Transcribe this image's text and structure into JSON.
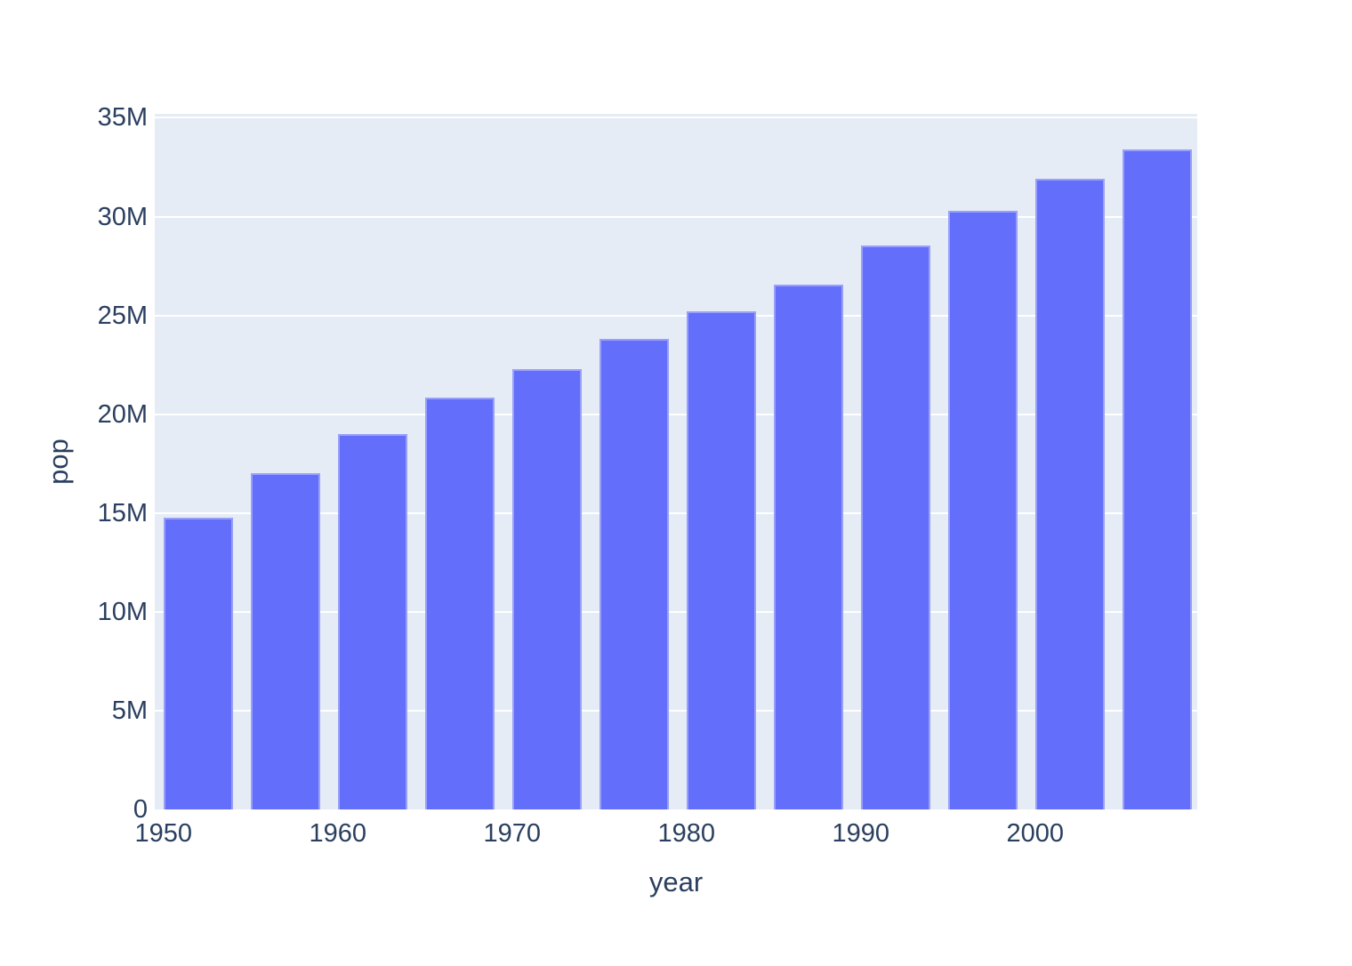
{
  "chart_data": {
    "type": "bar",
    "title": "",
    "xlabel": "year",
    "ylabel": "pop",
    "series_name": "pop",
    "x": [
      1952,
      1957,
      1962,
      1967,
      1972,
      1977,
      1982,
      1987,
      1992,
      1997,
      2002,
      2007
    ],
    "values": [
      14785584,
      17010154,
      18985849,
      20819767,
      22284500,
      23796400,
      25201900,
      26549700,
      28523502,
      30305843,
      31902268,
      33390141
    ],
    "x_range": [
      1949.5,
      2009.3
    ],
    "y_range": [
      0,
      35200000
    ],
    "bar_width_x": 4,
    "x_ticks": [
      {
        "value": 1950,
        "label": "1950"
      },
      {
        "value": 1960,
        "label": "1960"
      },
      {
        "value": 1970,
        "label": "1970"
      },
      {
        "value": 1980,
        "label": "1980"
      },
      {
        "value": 1990,
        "label": "1990"
      },
      {
        "value": 2000,
        "label": "2000"
      }
    ],
    "y_ticks": [
      {
        "value": 0,
        "label": "0"
      },
      {
        "value": 5000000,
        "label": "5M"
      },
      {
        "value": 10000000,
        "label": "10M"
      },
      {
        "value": 15000000,
        "label": "15M"
      },
      {
        "value": 20000000,
        "label": "20M"
      },
      {
        "value": 25000000,
        "label": "25M"
      },
      {
        "value": 30000000,
        "label": "30M"
      },
      {
        "value": 35000000,
        "label": "35M"
      }
    ],
    "grid": true,
    "legend": false,
    "colors": {
      "bar": "#636EFA",
      "plot_background": "#E5ECF6",
      "gridline": "#FFFFFF",
      "text": "#2A3F5F",
      "page_background": "#FFFFFF"
    }
  }
}
